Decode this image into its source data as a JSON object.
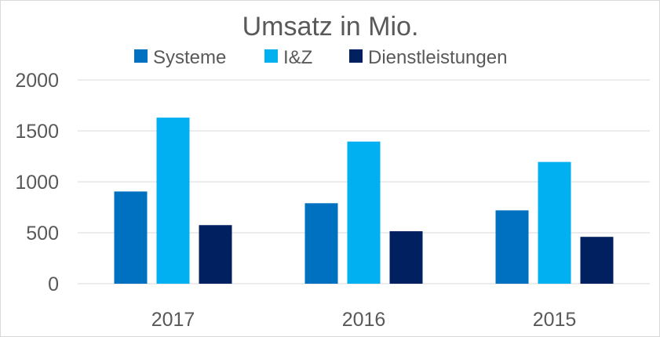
{
  "chart_data": {
    "type": "bar",
    "title": "Umsatz in Mio.",
    "xlabel": "",
    "ylabel": "",
    "categories": [
      "2017",
      "2016",
      "2015"
    ],
    "series": [
      {
        "name": "Systeme",
        "color": "#0070C0",
        "values": [
          905,
          790,
          720
        ]
      },
      {
        "name": "I&Z",
        "color": "#00B0F0",
        "values": [
          1630,
          1395,
          1195
        ]
      },
      {
        "name": "Dienstleistungen",
        "color": "#002060",
        "values": [
          575,
          515,
          460
        ]
      }
    ],
    "ylim": [
      0,
      2000
    ],
    "yticks": [
      0,
      500,
      1000,
      1500,
      2000
    ],
    "ytick_labels": [
      "0",
      "500",
      "1000",
      "1500",
      "2000"
    ],
    "grid": true,
    "legend_position": "top",
    "colors": {
      "gridline": "#d9d9d9",
      "text": "#595959"
    }
  }
}
